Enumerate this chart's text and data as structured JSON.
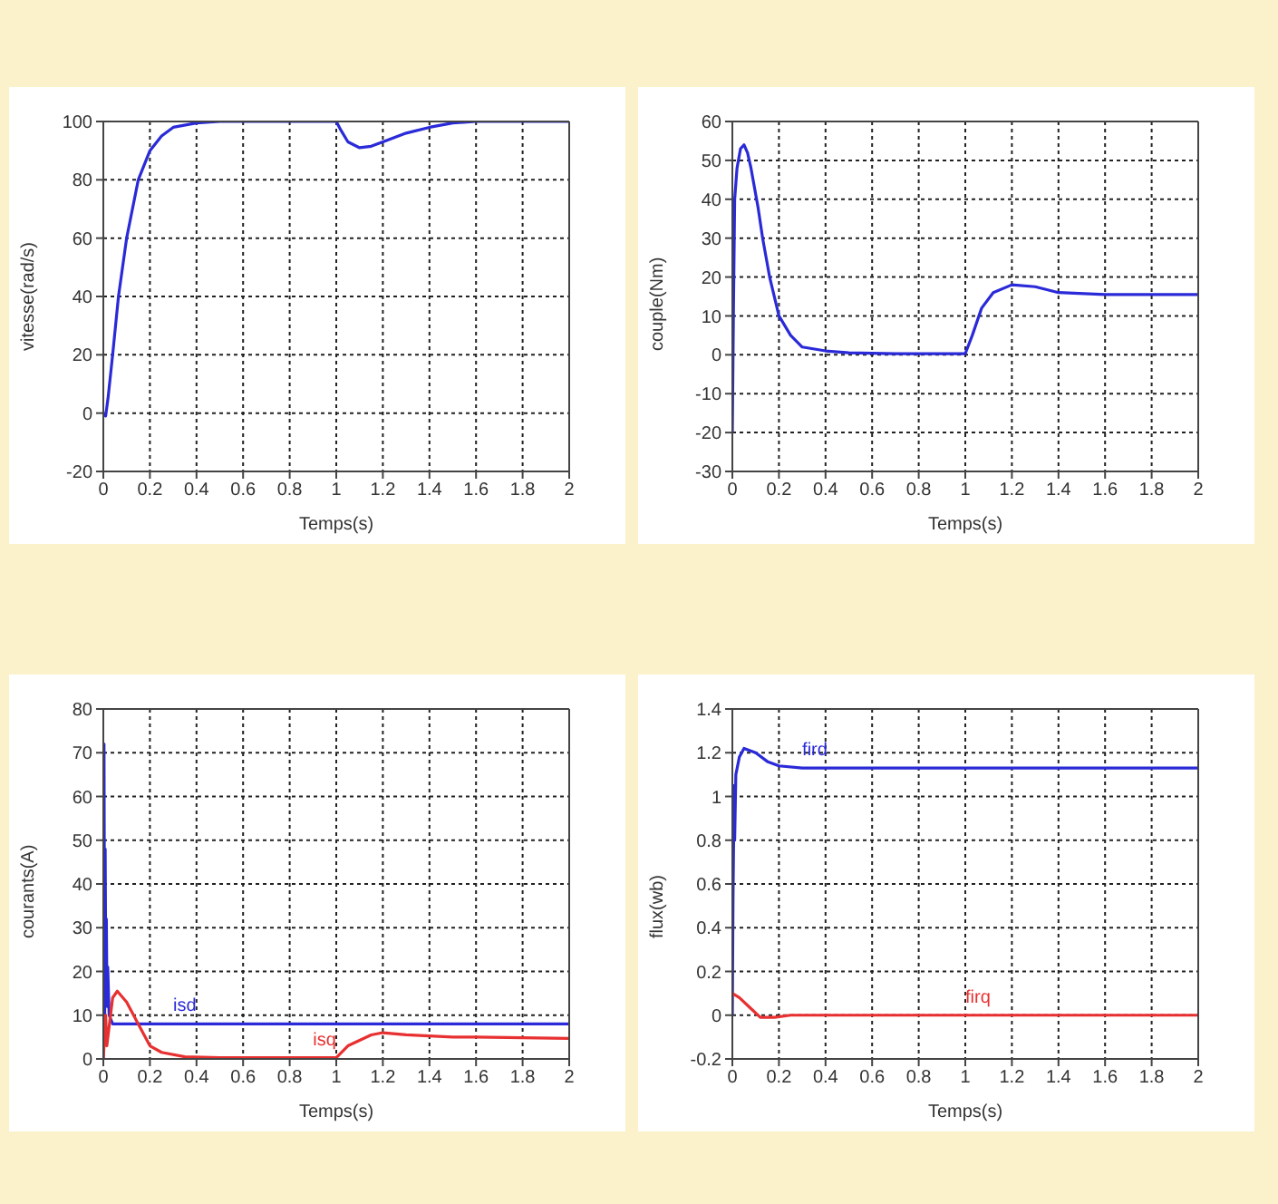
{
  "chart_data": [
    {
      "type": "line",
      "xlabel": "Temps(s)",
      "ylabel": "vitesse(rad/s)",
      "xlim": [
        0,
        2
      ],
      "xticks": [
        0,
        0.2,
        0.4,
        0.6,
        0.8,
        1,
        1.2,
        1.4,
        1.6,
        1.8,
        2
      ],
      "ylim": [
        -20,
        100
      ],
      "yticks": [
        -20,
        0,
        20,
        40,
        60,
        80,
        100
      ],
      "grid": true,
      "line_style": "solid",
      "marker": "none",
      "series": [
        {
          "color": "#2a2ad8",
          "x": [
            0,
            0.01,
            0.02,
            0.04,
            0.065,
            0.1,
            0.15,
            0.2,
            0.25,
            0.3,
            0.4,
            0.5,
            0.6,
            0.8,
            1.0,
            1.02,
            1.05,
            1.1,
            1.15,
            1.2,
            1.3,
            1.4,
            1.5,
            1.6,
            1.8,
            2
          ],
          "values": [
            0,
            -1,
            5,
            20,
            40,
            60,
            80,
            90,
            95,
            98,
            99.5,
            100,
            100,
            100,
            100,
            97,
            93,
            91,
            91.5,
            93,
            96,
            98,
            99.5,
            100,
            100,
            100
          ]
        }
      ]
    },
    {
      "type": "line",
      "xlabel": "Temps(s)",
      "ylabel": "couple(Nm)",
      "xlim": [
        0,
        2
      ],
      "xticks": [
        0,
        0.2,
        0.4,
        0.6,
        0.8,
        1,
        1.2,
        1.4,
        1.6,
        1.8,
        2
      ],
      "ylim": [
        -30,
        60
      ],
      "yticks": [
        -30,
        -20,
        -10,
        0,
        10,
        20,
        30,
        40,
        50,
        60
      ],
      "grid": true,
      "line_style": "solid",
      "marker": "none",
      "series": [
        {
          "color": "#2a2ad8",
          "x": [
            0,
            0.005,
            0.01,
            0.02,
            0.035,
            0.05,
            0.065,
            0.08,
            0.11,
            0.13,
            0.16,
            0.2,
            0.25,
            0.3,
            0.4,
            0.5,
            0.7,
            1.0,
            1.03,
            1.07,
            1.12,
            1.2,
            1.3,
            1.4,
            1.6,
            1.8,
            2
          ],
          "values": [
            -20,
            13,
            40,
            48,
            53,
            54,
            52,
            48,
            38,
            30,
            20,
            10,
            5,
            2,
            1,
            0.5,
            0.3,
            0.3,
            5,
            12,
            16,
            18,
            17.5,
            16,
            15.5,
            15.5,
            15.5
          ]
        }
      ]
    },
    {
      "type": "line",
      "xlabel": "Temps(s)",
      "ylabel": "courants(A)",
      "xlim": [
        0,
        2
      ],
      "xticks": [
        0,
        0.2,
        0.4,
        0.6,
        0.8,
        1,
        1.2,
        1.4,
        1.6,
        1.8,
        2
      ],
      "ylim": [
        0,
        80
      ],
      "yticks": [
        0,
        10,
        20,
        30,
        40,
        50,
        60,
        70,
        80
      ],
      "grid": true,
      "line_style": "solid",
      "marker": "none",
      "series": [
        {
          "name": "isd",
          "color": "#2a2ad8",
          "x": [
            0,
            0.003,
            0.006,
            0.008,
            0.011,
            0.013,
            0.016,
            0.019,
            0.025,
            0.04,
            0.3,
            1,
            2
          ],
          "values": [
            0,
            72,
            10,
            48,
            15,
            32,
            12,
            21,
            10,
            8,
            8,
            8,
            8
          ]
        },
        {
          "name": "isq",
          "color": "#e83030",
          "x": [
            0,
            0.01,
            0.015,
            0.04,
            0.06,
            0.1,
            0.15,
            0.2,
            0.25,
            0.35,
            0.5,
            0.9,
            1.0,
            1.05,
            1.15,
            1.2,
            1.3,
            1.5,
            1.6,
            2
          ],
          "values": [
            0,
            10,
            3,
            14,
            15.5,
            13,
            8,
            3,
            1.5,
            0.5,
            0.3,
            0.3,
            0.3,
            3,
            5.5,
            6,
            5.5,
            5,
            5,
            4.7
          ]
        }
      ]
    },
    {
      "type": "line",
      "xlabel": "Temps(s)",
      "ylabel": "flux(wb)",
      "xlim": [
        0,
        2
      ],
      "xticks": [
        0,
        0.2,
        0.4,
        0.6,
        0.8,
        1,
        1.2,
        1.4,
        1.6,
        1.8,
        2
      ],
      "ylim": [
        -0.2,
        1.4
      ],
      "yticks": [
        -0.2,
        0,
        0.2,
        0.4,
        0.6,
        0.8,
        1,
        1.2,
        1.4
      ],
      "grid": true,
      "line_style": "solid",
      "marker": "none",
      "series": [
        {
          "name": "fird",
          "color": "#2a2ad8",
          "x": [
            0,
            0.003,
            0.008,
            0.01,
            0.015,
            0.03,
            0.05,
            0.1,
            0.15,
            0.2,
            0.3,
            0.45,
            1,
            2
          ],
          "values": [
            0,
            0.55,
            1.05,
            0.8,
            1.1,
            1.18,
            1.22,
            1.2,
            1.16,
            1.14,
            1.13,
            1.13,
            1.13,
            1.13
          ]
        },
        {
          "name": "firq",
          "color": "#e83030",
          "x": [
            0,
            0.03,
            0.08,
            0.12,
            0.18,
            0.25,
            0.45,
            1,
            2
          ],
          "values": [
            0.1,
            0.08,
            0.03,
            -0.01,
            -0.01,
            0,
            0,
            0,
            0
          ]
        }
      ]
    }
  ]
}
